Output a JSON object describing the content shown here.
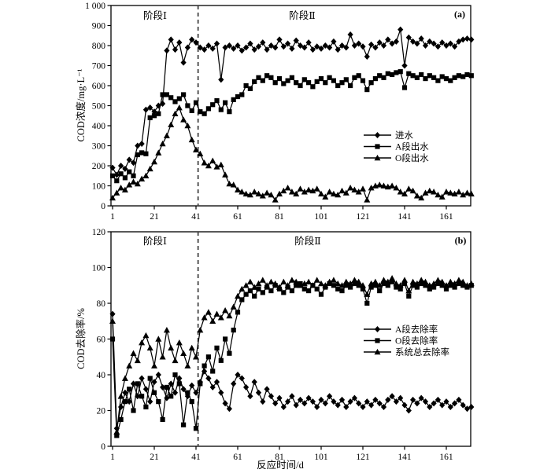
{
  "figure": {
    "xlabel": "反应时间/d",
    "x_ticks": [
      1,
      21,
      41,
      61,
      81,
      101,
      121,
      141,
      161
    ],
    "divider_day": 42,
    "series_color": "#000000",
    "divider_color": "#444444"
  },
  "chart_data": [
    {
      "type": "line",
      "panel_label": "(a)",
      "ylabel": "COD浓度/mg·L⁻¹",
      "xlabel": "反应时间/d",
      "ylim": [
        0,
        1000
      ],
      "xlim": [
        0,
        173
      ],
      "grid": false,
      "legend_position": "right-middle",
      "phase_labels": [
        "阶段Ⅰ",
        "阶段Ⅱ"
      ],
      "divider_day": 42,
      "y_tick_labels": [
        "0",
        "100",
        "200",
        "300",
        "400",
        "500",
        "600",
        "700",
        "800",
        "900",
        "1 000"
      ],
      "x_ticks": [
        1,
        21,
        41,
        61,
        81,
        101,
        121,
        141,
        161
      ],
      "x_start": 1,
      "x_step": 2,
      "series": [
        {
          "name": "进水",
          "key": "influent",
          "marker": "diamond",
          "values": [
            190,
            155,
            200,
            185,
            230,
            215,
            300,
            310,
            480,
            490,
            470,
            500,
            510,
            775,
            830,
            780,
            815,
            715,
            790,
            830,
            815,
            790,
            780,
            800,
            785,
            810,
            630,
            790,
            800,
            785,
            800,
            775,
            790,
            810,
            780,
            795,
            815,
            780,
            800,
            790,
            830,
            795,
            810,
            785,
            825,
            800,
            790,
            815,
            780,
            795,
            785,
            800,
            790,
            820,
            780,
            800,
            790,
            855,
            800,
            810,
            795,
            745,
            805,
            790,
            815,
            800,
            830,
            810,
            820,
            880,
            700,
            840,
            820,
            810,
            835,
            800,
            820,
            810,
            795,
            815,
            800,
            810,
            795,
            820,
            830,
            835,
            830
          ]
        },
        {
          "name": "A段出水",
          "key": "stage-a-effluent",
          "marker": "square",
          "values": [
            150,
            125,
            160,
            140,
            170,
            150,
            255,
            265,
            260,
            440,
            450,
            460,
            555,
            555,
            540,
            520,
            535,
            555,
            500,
            475,
            515,
            470,
            460,
            485,
            505,
            525,
            480,
            515,
            470,
            530,
            545,
            555,
            600,
            585,
            620,
            640,
            625,
            650,
            640,
            615,
            635,
            610,
            625,
            640,
            615,
            600,
            630,
            615,
            595,
            620,
            635,
            615,
            640,
            625,
            600,
            615,
            630,
            600,
            640,
            650,
            625,
            580,
            615,
            635,
            650,
            640,
            660,
            655,
            665,
            670,
            590,
            660,
            650,
            640,
            655,
            635,
            650,
            640,
            625,
            645,
            635,
            625,
            640,
            650,
            645,
            655,
            650
          ]
        },
        {
          "name": "O段出水",
          "key": "stage-o-effluent",
          "marker": "triangle",
          "values": [
            40,
            65,
            90,
            80,
            105,
            120,
            110,
            135,
            150,
            185,
            220,
            265,
            310,
            350,
            405,
            460,
            490,
            430,
            400,
            330,
            280,
            260,
            215,
            200,
            225,
            195,
            205,
            155,
            110,
            105,
            80,
            70,
            60,
            55,
            70,
            60,
            50,
            65,
            55,
            30,
            60,
            75,
            90,
            70,
            60,
            85,
            70,
            80,
            75,
            85,
            60,
            45,
            70,
            60,
            55,
            75,
            65,
            90,
            80,
            70,
            85,
            30,
            90,
            100,
            105,
            100,
            95,
            100,
            90,
            70,
            60,
            85,
            75,
            50,
            40,
            65,
            75,
            70,
            55,
            45,
            70,
            65,
            60,
            70,
            55,
            65,
            60
          ]
        }
      ]
    },
    {
      "type": "line",
      "panel_label": "(b)",
      "ylabel": "COD去除率/%",
      "xlabel": "反应时间/d",
      "ylim": [
        0,
        120
      ],
      "xlim": [
        0,
        173
      ],
      "grid": false,
      "legend_position": "right-middle",
      "phase_labels": [
        "阶段Ⅰ",
        "阶段Ⅱ"
      ],
      "divider_day": 42,
      "y_tick_labels": [
        "0",
        "20",
        "40",
        "60",
        "80",
        "100",
        "120"
      ],
      "x_ticks": [
        1,
        21,
        41,
        61,
        81,
        101,
        121,
        141,
        161
      ],
      "x_start": 1,
      "x_step": 2,
      "series": [
        {
          "name": "A段去除率",
          "key": "stage-a-removal",
          "marker": "diamond",
          "values": [
            74,
            10,
            22,
            30,
            25,
            35,
            28,
            38,
            32,
            25,
            36,
            40,
            33,
            27,
            35,
            30,
            38,
            32,
            28,
            34,
            30,
            36,
            42,
            38,
            33,
            36,
            30,
            24,
            21,
            35,
            40,
            38,
            33,
            28,
            36,
            30,
            25,
            32,
            28,
            24,
            27,
            22,
            25,
            28,
            23,
            26,
            24,
            27,
            25,
            22,
            26,
            24,
            28,
            25,
            23,
            26,
            22,
            25,
            27,
            24,
            22,
            25,
            23,
            26,
            24,
            22,
            26,
            28,
            25,
            27,
            23,
            20,
            26,
            24,
            27,
            25,
            22,
            24,
            26,
            23,
            25,
            22,
            24,
            26,
            23,
            21,
            22
          ]
        },
        {
          "name": "O段去除率",
          "key": "stage-o-removal",
          "marker": "square",
          "values": [
            60,
            6,
            15,
            25,
            32,
            20,
            35,
            28,
            22,
            38,
            30,
            25,
            15,
            33,
            28,
            40,
            35,
            12,
            30,
            25,
            10,
            35,
            45,
            50,
            42,
            55,
            48,
            60,
            52,
            65,
            75,
            82,
            85,
            87,
            84,
            88,
            86,
            89,
            87,
            90,
            88,
            86,
            89,
            87,
            90,
            91,
            88,
            87,
            90,
            88,
            85,
            89,
            91,
            90,
            88,
            87,
            90,
            89,
            91,
            90,
            88,
            80,
            89,
            90,
            87,
            91,
            90,
            92,
            89,
            88,
            91,
            84,
            90,
            89,
            91,
            90,
            88,
            89,
            91,
            90,
            88,
            90,
            89,
            91,
            90,
            89,
            90
          ]
        },
        {
          "name": "系统总去除率",
          "key": "system-total-removal",
          "marker": "triangle",
          "values": [
            70,
            8,
            28,
            38,
            45,
            52,
            48,
            58,
            62,
            55,
            45,
            60,
            50,
            65,
            55,
            48,
            58,
            52,
            45,
            55,
            50,
            65,
            72,
            75,
            70,
            74,
            72,
            76,
            73,
            78,
            84,
            88,
            90,
            92,
            89,
            91,
            93,
            90,
            92,
            91,
            89,
            92,
            90,
            93,
            92,
            90,
            91,
            92,
            90,
            93,
            91,
            90,
            92,
            93,
            91,
            90,
            92,
            91,
            93,
            92,
            90,
            85,
            91,
            92,
            90,
            93,
            92,
            94,
            91,
            90,
            93,
            87,
            92,
            91,
            93,
            92,
            90,
            91,
            93,
            92,
            90,
            92,
            91,
            93,
            92,
            90,
            91
          ]
        }
      ]
    }
  ]
}
